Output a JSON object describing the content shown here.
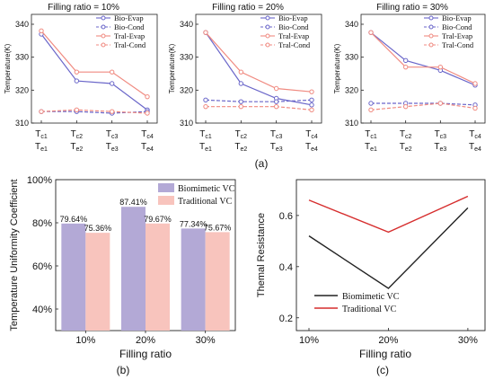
{
  "captions": {
    "a": "(a)",
    "b": "(b)",
    "c": "(c)"
  },
  "tops": {
    "x_tick_top": [
      "Tc1",
      "Tc2",
      "Tc3",
      "Tc4"
    ],
    "x_tick_bottom": [
      "Te1",
      "Te2",
      "Te3",
      "Te4"
    ],
    "legend": [
      "Bio-Evap",
      "Bio-Cond",
      "Tral-Evap",
      "Tral-Cond"
    ],
    "colors": {
      "bio": "#6a66c9",
      "tral": "#f08a80"
    }
  },
  "chart_data": [
    {
      "type": "line",
      "title": "Filling ratio = 10%",
      "ylabel": "Temperature(K)",
      "ylim": [
        310,
        343
      ],
      "yticks": [
        310,
        320,
        330,
        340
      ],
      "x": [
        "Tc1/Te1",
        "Tc2/Te2",
        "Tc3/Te3",
        "Tc4/Te4"
      ],
      "series": [
        {
          "name": "Bio-Evap",
          "values": [
            337,
            322.8,
            322,
            314
          ],
          "style": "solid",
          "color": "#6a66c9"
        },
        {
          "name": "Bio-Cond",
          "values": [
            313.5,
            313.5,
            313,
            313.5
          ],
          "style": "dashed",
          "color": "#6a66c9"
        },
        {
          "name": "Tral-Evap",
          "values": [
            338,
            325.5,
            325.5,
            318
          ],
          "style": "solid",
          "color": "#f08a80"
        },
        {
          "name": "Tral-Cond",
          "values": [
            313.5,
            314,
            313.5,
            313
          ],
          "style": "dashed",
          "color": "#f08a80"
        }
      ]
    },
    {
      "type": "line",
      "title": "Filling ratio = 20%",
      "ylabel": "Temperature(K)",
      "ylim": [
        310,
        343
      ],
      "yticks": [
        310,
        320,
        330,
        340
      ],
      "x": [
        "Tc1/Te1",
        "Tc2/Te2",
        "Tc3/Te3",
        "Tc4/Te4"
      ],
      "series": [
        {
          "name": "Bio-Evap",
          "values": [
            337.5,
            322,
            317.5,
            315.5
          ],
          "style": "solid",
          "color": "#6a66c9"
        },
        {
          "name": "Bio-Cond",
          "values": [
            317,
            316.5,
            316.5,
            317
          ],
          "style": "dashed",
          "color": "#6a66c9"
        },
        {
          "name": "Tral-Evap",
          "values": [
            337.5,
            325.5,
            320.5,
            319.5
          ],
          "style": "solid",
          "color": "#f08a80"
        },
        {
          "name": "Tral-Cond",
          "values": [
            315,
            315,
            315,
            314
          ],
          "style": "dashed",
          "color": "#f08a80"
        }
      ]
    },
    {
      "type": "line",
      "title": "Filling ratio = 30%",
      "ylabel": "Temperature(K)",
      "ylim": [
        310,
        343
      ],
      "yticks": [
        310,
        320,
        330,
        340
      ],
      "x": [
        "Tc1/Te1",
        "Tc2/Te2",
        "Tc3/Te3",
        "Tc4/Te4"
      ],
      "series": [
        {
          "name": "Bio-Evap",
          "values": [
            337.5,
            329,
            326,
            321.5
          ],
          "style": "solid",
          "color": "#6a66c9"
        },
        {
          "name": "Bio-Cond",
          "values": [
            316,
            316,
            316,
            315.5
          ],
          "style": "dashed",
          "color": "#6a66c9"
        },
        {
          "name": "Tral-Evap",
          "values": [
            337.5,
            327,
            327,
            322
          ],
          "style": "solid",
          "color": "#f08a80"
        },
        {
          "name": "Tral-Cond",
          "values": [
            314,
            315,
            316,
            314.5
          ],
          "style": "dashed",
          "color": "#f08a80"
        }
      ]
    },
    {
      "type": "bar",
      "ylabel": "Temperature Uniformity Coefficient",
      "xlabel": "Filling ratio",
      "ylim": [
        30,
        100
      ],
      "yticks": [
        "40%",
        "60%",
        "80%",
        "100%"
      ],
      "ytick_values": [
        40,
        60,
        80,
        100
      ],
      "categories": [
        "10%",
        "20%",
        "30%"
      ],
      "series": [
        {
          "name": "Biomimetic VC",
          "values": [
            79.64,
            87.41,
            77.34
          ],
          "labels": [
            "79.64%",
            "87.41%",
            "77.34%"
          ],
          "color": "#b3a9d6"
        },
        {
          "name": "Traditional VC",
          "values": [
            75.36,
            79.67,
            75.67
          ],
          "labels": [
            "75.36%",
            "79.67%",
            "75.67%"
          ],
          "color": "#f8c4bd"
        }
      ],
      "legend_placement": "top-right"
    },
    {
      "type": "line",
      "ylabel": "Themal Resistance",
      "xlabel": "Filling ratio",
      "ylim": [
        0.15,
        0.74
      ],
      "yticks": [
        "0.2",
        "0.4",
        "0.6"
      ],
      "ytick_values": [
        0.2,
        0.4,
        0.6
      ],
      "categories": [
        "10%",
        "20%",
        "30%"
      ],
      "series": [
        {
          "name": "Biomimetic VC",
          "values": [
            0.52,
            0.315,
            0.63
          ],
          "color": "#222222"
        },
        {
          "name": "Traditional VC",
          "values": [
            0.66,
            0.535,
            0.675
          ],
          "color": "#d62d2d"
        }
      ],
      "legend_placement": "bottom-left"
    }
  ]
}
